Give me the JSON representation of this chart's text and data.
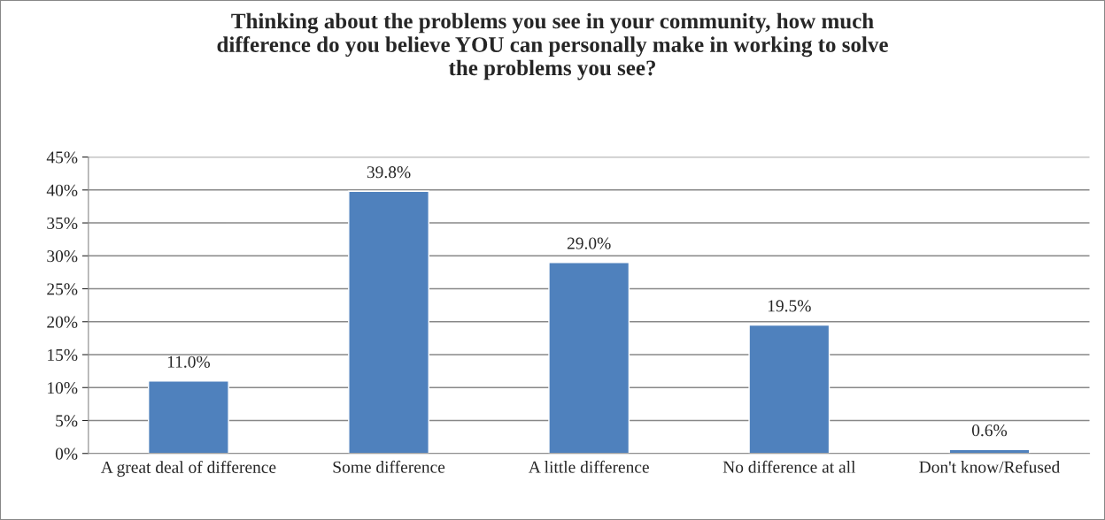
{
  "chart_data": {
    "type": "bar",
    "title": "Thinking about the problems you see in your community, how much difference do you believe YOU can personally make in working to solve the problems you see?",
    "categories": [
      "A great deal of difference",
      "Some difference",
      "A little difference",
      "No difference at all",
      "Don't know/Refused"
    ],
    "values": [
      11.0,
      39.8,
      29.0,
      19.5,
      0.6
    ],
    "value_labels": [
      "11.0%",
      "39.8%",
      "29.0%",
      "19.5%",
      "0.6%"
    ],
    "color": "#4f81bd",
    "ylim": [
      0,
      45
    ],
    "yticks": [
      {
        "value": 0,
        "label": "0%"
      },
      {
        "value": 5,
        "label": "5%"
      },
      {
        "value": 10,
        "label": "10%"
      },
      {
        "value": 15,
        "label": "15%"
      },
      {
        "value": 20,
        "label": "20%"
      },
      {
        "value": 25,
        "label": "25%"
      },
      {
        "value": 30,
        "label": "30%"
      },
      {
        "value": 35,
        "label": "35%"
      },
      {
        "value": 40,
        "label": "40%"
      },
      {
        "value": 45,
        "label": "45%"
      }
    ],
    "grid": "y"
  }
}
